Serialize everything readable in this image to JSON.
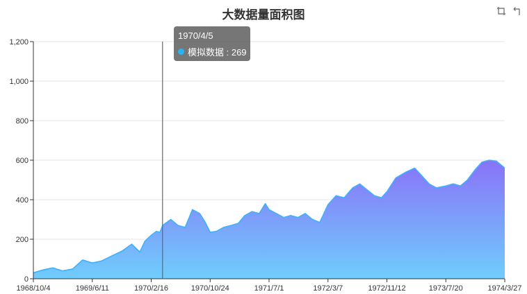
{
  "chart_data": {
    "type": "area",
    "title": "大数据量面积图",
    "x_start": "1968/10/4",
    "x_end": "1974/3/27",
    "x_tick_labels": [
      "1968/10/4",
      "1969/6/11",
      "1970/2/16",
      "1970/10/24",
      "1971/7/1",
      "1972/3/7",
      "1972/11/12",
      "1973/7/20",
      "1974/3/27"
    ],
    "ylim": [
      0,
      1200
    ],
    "y_tick_labels": [
      "0",
      "200",
      "400",
      "600",
      "800",
      "1,000",
      "1,200"
    ],
    "series": [
      {
        "name": "模拟数据",
        "points": [
          [
            "1968/10/4",
            30
          ],
          [
            "1968/11/15",
            45
          ],
          [
            "1968/12/25",
            55
          ],
          [
            "1969/2/5",
            40
          ],
          [
            "1969/3/20",
            50
          ],
          [
            "1969/5/1",
            95
          ],
          [
            "1969/6/11",
            80
          ],
          [
            "1969/7/20",
            90
          ],
          [
            "1969/9/1",
            115
          ],
          [
            "1969/10/15",
            140
          ],
          [
            "1969/11/25",
            175
          ],
          [
            "1969/12/30",
            135
          ],
          [
            "1970/1/20",
            190
          ],
          [
            "1970/2/16",
            220
          ],
          [
            "1970/3/10",
            240
          ],
          [
            "1970/3/25",
            235
          ],
          [
            "1970/4/5",
            269
          ],
          [
            "1970/5/10",
            300
          ],
          [
            "1970/6/10",
            270
          ],
          [
            "1970/7/10",
            260
          ],
          [
            "1970/8/10",
            350
          ],
          [
            "1970/9/10",
            330
          ],
          [
            "1970/10/1",
            290
          ],
          [
            "1970/10/24",
            235
          ],
          [
            "1970/11/20",
            240
          ],
          [
            "1970/12/20",
            260
          ],
          [
            "1971/1/20",
            270
          ],
          [
            "1971/2/20",
            280
          ],
          [
            "1971/3/20",
            320
          ],
          [
            "1971/4/20",
            340
          ],
          [
            "1971/5/20",
            330
          ],
          [
            "1971/6/15",
            380
          ],
          [
            "1971/7/1",
            350
          ],
          [
            "1971/8/1",
            330
          ],
          [
            "1971/9/1",
            310
          ],
          [
            "1971/10/1",
            320
          ],
          [
            "1971/11/1",
            310
          ],
          [
            "1971/12/1",
            330
          ],
          [
            "1972/1/1",
            300
          ],
          [
            "1972/2/1",
            285
          ],
          [
            "1972/3/7",
            375
          ],
          [
            "1972/4/10",
            420
          ],
          [
            "1972/5/15",
            410
          ],
          [
            "1972/6/20",
            460
          ],
          [
            "1972/7/20",
            480
          ],
          [
            "1972/8/20",
            450
          ],
          [
            "1972/9/20",
            420
          ],
          [
            "1972/10/20",
            410
          ],
          [
            "1972/11/12",
            440
          ],
          [
            "1972/12/20",
            510
          ],
          [
            "1973/2/1",
            540
          ],
          [
            "1973/3/10",
            560
          ],
          [
            "1973/4/10",
            520
          ],
          [
            "1973/5/10",
            480
          ],
          [
            "1973/6/10",
            460
          ],
          [
            "1973/7/20",
            470
          ],
          [
            "1973/8/20",
            480
          ],
          [
            "1973/9/20",
            470
          ],
          [
            "1973/10/20",
            500
          ],
          [
            "1973/11/20",
            550
          ],
          [
            "1973/12/20",
            590
          ],
          [
            "1974/1/20",
            600
          ],
          [
            "1974/2/20",
            595
          ],
          [
            "1974/3/27",
            560
          ]
        ]
      }
    ],
    "area_gradient": {
      "top": "#8a72f8",
      "bottom": "#6fcdfc"
    },
    "line_color": "#3fb0ff",
    "grid": true,
    "pointer_date": "1970/4/5",
    "tooltip": {
      "date": "1970/4/5",
      "series_label": "模拟数据 : 269",
      "dot_color": "#27b4f5"
    }
  },
  "toolbox": {
    "zoom_icon": "zoom-icon",
    "restore_icon": "restore-icon"
  }
}
